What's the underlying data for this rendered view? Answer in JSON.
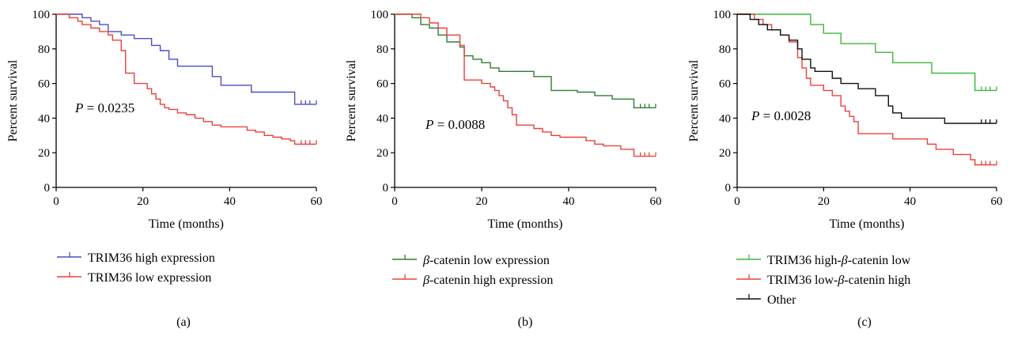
{
  "chart_data": [
    {
      "type": "line",
      "panel_label": "(a)",
      "xlabel": "Time (months)",
      "ylabel": "Percent survival",
      "xlim": [
        0,
        60
      ],
      "ylim": [
        0,
        100
      ],
      "xticks": [
        0,
        20,
        40,
        60
      ],
      "yticks": [
        0,
        20,
        40,
        60,
        80,
        100
      ],
      "annotation": {
        "p_italic": "P",
        "p_rest": " = 0.0235"
      },
      "series": [
        {
          "name": "TRIM36 high expression",
          "color": "#4a4fc4",
          "x": [
            0,
            5,
            6,
            8,
            10,
            12,
            15,
            18,
            22,
            24,
            26,
            28,
            36,
            38,
            45,
            55,
            60
          ],
          "y": [
            100,
            100,
            98,
            96,
            94,
            90,
            88,
            86,
            82,
            79,
            74,
            70,
            64,
            59,
            55,
            48,
            48
          ],
          "censors": [
            56.5,
            57.5,
            58.5,
            60
          ]
        },
        {
          "name": "TRIM36 low expression",
          "color": "#e8423c",
          "x": [
            0,
            3,
            5,
            6,
            8,
            10,
            12,
            13,
            15,
            16,
            18,
            21,
            22,
            23,
            24,
            25,
            26,
            28,
            30,
            32,
            34,
            36,
            38,
            40,
            44,
            46,
            48,
            50,
            52,
            54,
            55,
            60
          ],
          "y": [
            100,
            98,
            96,
            94,
            92,
            90,
            88,
            85,
            79,
            66,
            60,
            57,
            54,
            51,
            48,
            46,
            45,
            43,
            42,
            40,
            38,
            36,
            35,
            35,
            33,
            32,
            30,
            29,
            28,
            27,
            25,
            25
          ],
          "censors": [
            56.5,
            57.5,
            58.5,
            60
          ]
        }
      ]
    },
    {
      "type": "line",
      "panel_label": "(b)",
      "xlabel": "Time (months)",
      "ylabel": "Percent survival",
      "xlim": [
        0,
        60
      ],
      "ylim": [
        0,
        100
      ],
      "xticks": [
        0,
        20,
        40,
        60
      ],
      "yticks": [
        0,
        20,
        40,
        60,
        80,
        100
      ],
      "annotation": {
        "p_italic": "P",
        "p_rest": " = 0.0088"
      },
      "series": [
        {
          "name_greek": "β",
          "name_rest": "-catenin low expression",
          "color": "#2e7d32",
          "x": [
            0,
            4,
            6,
            8,
            10,
            12,
            15,
            16,
            18,
            20,
            22,
            24,
            28,
            32,
            36,
            42,
            46,
            50,
            55,
            60
          ],
          "y": [
            100,
            98,
            94,
            92,
            88,
            84,
            81,
            76,
            74,
            72,
            69,
            67,
            67,
            64,
            56,
            55,
            53,
            51,
            46,
            46
          ],
          "censors": [
            56.5,
            57.5,
            58.5,
            60
          ]
        },
        {
          "name_greek": "β",
          "name_rest": "-catenin high expression",
          "color": "#e8423c",
          "x": [
            0,
            6,
            8,
            10,
            12,
            15,
            16,
            20,
            22,
            23,
            24,
            25,
            26,
            27,
            28,
            32,
            34,
            36,
            38,
            40,
            44,
            46,
            48,
            52,
            55,
            60
          ],
          "y": [
            100,
            98,
            95,
            92,
            88,
            82,
            62,
            60,
            58,
            56,
            53,
            50,
            46,
            42,
            36,
            34,
            32,
            30,
            29,
            29,
            27,
            25,
            24,
            22,
            18,
            18
          ],
          "censors": [
            56.5,
            57.5,
            58.5,
            60
          ]
        }
      ]
    },
    {
      "type": "line",
      "panel_label": "(c)",
      "xlabel": "Time (months)",
      "ylabel": "Percent survival",
      "xlim": [
        0,
        60
      ],
      "ylim": [
        0,
        100
      ],
      "xticks": [
        0,
        20,
        40,
        60
      ],
      "yticks": [
        0,
        20,
        40,
        60,
        80,
        100
      ],
      "annotation": {
        "p_italic": "P",
        "p_rest": " = 0.0028"
      },
      "series": [
        {
          "name_pre": "TRIM36 high-",
          "name_greek": "β",
          "name_post": "-catenin low",
          "color": "#3cb83a",
          "x": [
            0,
            15,
            17,
            20,
            24,
            32,
            36,
            45,
            55,
            60
          ],
          "y": [
            100,
            100,
            94,
            89,
            83,
            78,
            72,
            66,
            56,
            56
          ],
          "censors": [
            56.5,
            57.5,
            58.5,
            60
          ]
        },
        {
          "name_pre": "TRIM36 low-",
          "name_greek": "β",
          "name_post": "-catenin high",
          "color": "#e8423c",
          "x": [
            0,
            4,
            6,
            8,
            10,
            12,
            14,
            15,
            16,
            17,
            20,
            22,
            24,
            25,
            26,
            27,
            28,
            36,
            44,
            46,
            50,
            54,
            55,
            60
          ],
          "y": [
            100,
            97,
            94,
            91,
            88,
            84,
            75,
            69,
            63,
            59,
            56,
            53,
            47,
            44,
            41,
            38,
            31,
            28,
            25,
            22,
            19,
            16,
            13,
            13
          ],
          "censors": [
            56.5,
            57.5,
            58.5,
            60
          ]
        },
        {
          "name": "Other",
          "color": "#111111",
          "x": [
            0,
            3,
            5,
            7,
            10,
            12,
            14,
            15,
            17,
            18,
            22,
            24,
            28,
            32,
            35,
            36,
            38,
            46,
            48,
            60
          ],
          "y": [
            100,
            97,
            94,
            91,
            88,
            85,
            80,
            74,
            69,
            67,
            63,
            60,
            57,
            53,
            47,
            43,
            40,
            40,
            37,
            37
          ],
          "censors": [
            56.5,
            57.5,
            58.5,
            60
          ]
        }
      ]
    }
  ]
}
